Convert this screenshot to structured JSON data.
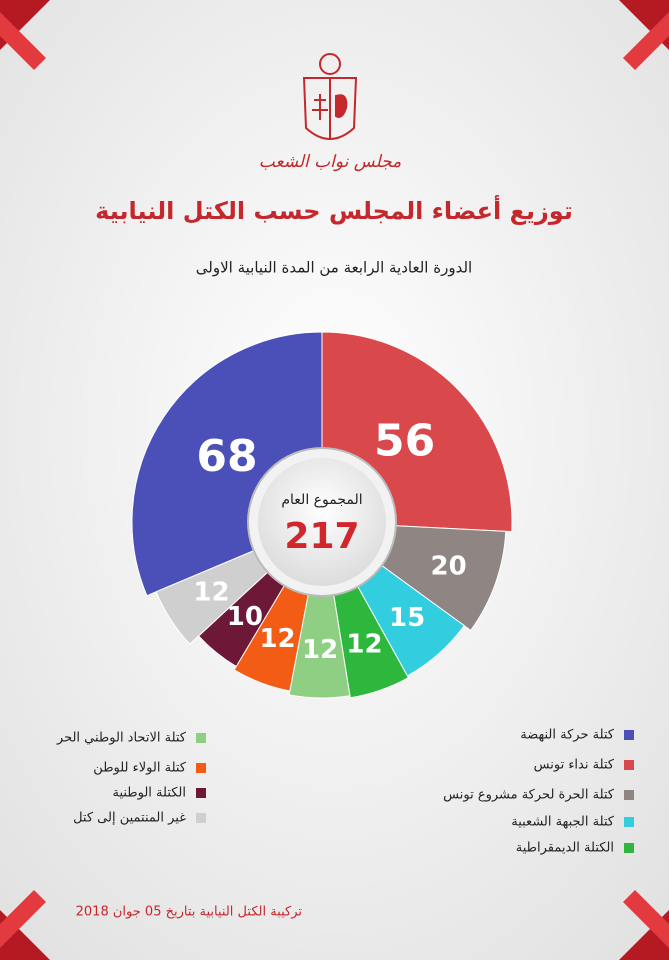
{
  "header": {
    "institution": "مجلس نواب الشعب"
  },
  "chart_data": {
    "type": "pie",
    "title": "توزيع أعضاء المجلس حسب الكتل النيابية",
    "subtitle": "الدورة العادية الرابعة من المدة النيابية الاولى",
    "total_label": "المجموع العام",
    "total": 217,
    "categories": [
      "كتلة حركة النهضة",
      "كتلة نداء تونس",
      "كتلة الحرة لحركة مشروع تونس",
      "كتلة الجبهة الشعبية",
      "الكتلة الديمقراطية",
      "كتلة الاتحاد الوطني الحر",
      "كتلة الولاء للوطن",
      "الكتلة الوطنية",
      "غير المنتمين إلى كتل"
    ],
    "values": [
      68,
      56,
      20,
      15,
      12,
      12,
      12,
      10,
      12
    ],
    "colors": [
      "#4b4fb8",
      "#d9484b",
      "#8f8582",
      "#33cde0",
      "#2db83d",
      "#8fcf83",
      "#f25c14",
      "#6e1838",
      "#cfcfcf"
    ],
    "footnote": "تركيبة الكتل النيابية بتاريخ 05 جوان 2018"
  }
}
